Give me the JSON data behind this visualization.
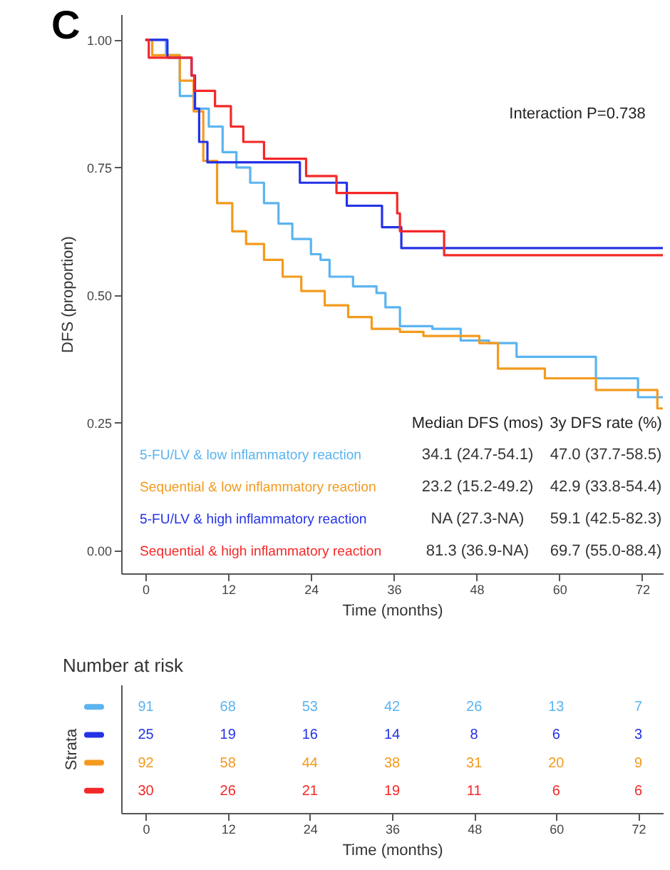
{
  "chart_data": [
    {
      "type": "step",
      "title": "C",
      "xlabel": "Time (months)",
      "ylabel": "DFS (proportion)",
      "xlim": [
        -3.5,
        75
      ],
      "ylim": [
        -0.045,
        1.05
      ],
      "xticks": [
        0,
        12,
        24,
        36,
        48,
        60,
        72
      ],
      "yticks": [
        {
          "value": 0,
          "label": "0.00"
        },
        {
          "value": 0.25,
          "label": "0.25"
        },
        {
          "value": 0.5,
          "label": "0.50"
        },
        {
          "value": 0.75,
          "label": "0.75"
        },
        {
          "value": 1,
          "label": "1.00"
        }
      ],
      "grid": false,
      "legend": "bottom left",
      "annotations": [
        "Interaction P=0.738",
        "Median DFS (mos)",
        "3y DFS rate (%)",
        "34.1 (24.7-54.1)",
        "47.0 (37.7-58.5)",
        "23.2 (15.2-49.2)",
        "42.9 (33.8-54.4)",
        "NA (27.3-NA)",
        "59.1 (42.5-82.3)",
        "81.3 (36.9-NA)",
        "69.7 (55.0-88.4)"
      ],
      "series": [
        {
          "name": "5-FU/LV & low inflammatory reaction",
          "color": "#5bb4f0",
          "x": [
            0,
            3,
            5,
            7.1,
            9.2,
            11.2,
            13.2,
            15.2,
            17.2,
            19.3,
            21.3,
            24,
            25.4,
            26.7,
            30.1,
            33.5,
            34.8,
            36.9,
            41.6,
            45.7,
            49.8,
            53.8,
            65.3,
            71.4,
            75
          ],
          "values": [
            1,
            0.97,
            0.89,
            0.865,
            0.83,
            0.78,
            0.75,
            0.72,
            0.68,
            0.64,
            0.61,
            0.58,
            0.569,
            0.536,
            0.517,
            0.504,
            0.476,
            0.439,
            0.434,
            0.411,
            0.406,
            0.379,
            0.337,
            0.3,
            0.3
          ]
        },
        {
          "name": "Sequential & low inflammatory reaction",
          "color": "#f39a1e",
          "x": [
            0,
            1,
            5,
            7,
            8.4,
            10.4,
            12.6,
            14.6,
            17.2,
            19.9,
            22.6,
            26,
            29.4,
            32.8,
            36.9,
            40.3,
            48.4,
            51.1,
            57.9,
            65.3,
            74.2,
            75
          ],
          "values": [
            1,
            0.97,
            0.92,
            0.86,
            0.763,
            0.68,
            0.625,
            0.6,
            0.569,
            0.536,
            0.508,
            0.48,
            0.457,
            0.434,
            0.428,
            0.42,
            0.406,
            0.356,
            0.337,
            0.314,
            0.278,
            0.278
          ]
        },
        {
          "name": "5-FU/LV & high inflammatory reaction",
          "color": "#2432e6",
          "x": [
            0,
            3.2,
            6.7,
            7.2,
            7.8,
            9,
            22.4,
            29.2,
            34.3,
            37.1,
            75
          ],
          "values": [
            1,
            0.965,
            0.93,
            0.865,
            0.8,
            0.76,
            0.72,
            0.675,
            0.633,
            0.592,
            0.592
          ]
        },
        {
          "name": "Sequential & high inflammatory reaction",
          "color": "#f42828",
          "x": [
            0,
            0.5,
            6.7,
            7.1,
            10.1,
            12.4,
            14.2,
            17.2,
            23.3,
            27.7,
            36.5,
            36.9,
            43.3,
            75
          ],
          "values": [
            1,
            0.965,
            0.93,
            0.9,
            0.87,
            0.83,
            0.8,
            0.767,
            0.733,
            0.7,
            0.66,
            0.625,
            0.578,
            0.578
          ]
        }
      ]
    },
    {
      "type": "heatmap",
      "title": "Number at risk",
      "xlabel": "Time (months)",
      "ylabel": "Strata",
      "categories": [
        "0",
        "12",
        "24",
        "36",
        "48",
        "60",
        "72"
      ],
      "y_categories": [
        null,
        null,
        null,
        null
      ],
      "data_labels": true,
      "colors": [
        "#5bb4f0",
        "#2432e6",
        "#f39a1e",
        "#f42828"
      ],
      "cells": [
        [
          91,
          68,
          53,
          42,
          26,
          13,
          7
        ],
        [
          25,
          19,
          16,
          14,
          8,
          6,
          3
        ],
        [
          92,
          58,
          44,
          38,
          31,
          20,
          9
        ],
        [
          30,
          26,
          21,
          19,
          11,
          6,
          6
        ]
      ]
    }
  ]
}
